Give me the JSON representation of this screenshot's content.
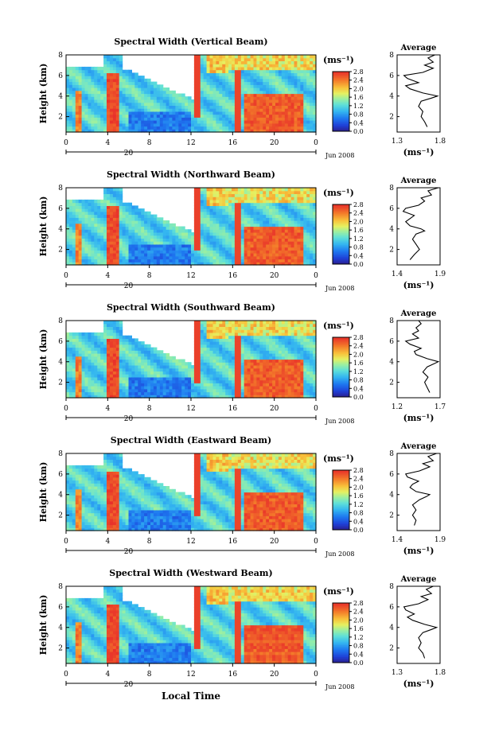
{
  "figure": {
    "xlabel": "Local Time",
    "xtick_labels": [
      "0",
      "4",
      "8",
      "12",
      "16",
      "20",
      "0"
    ],
    "date_tick": "20",
    "date_label": "Jun 2008",
    "ylabel": "Height (km)",
    "ytick_labels": [
      "2",
      "4",
      "6",
      "8"
    ],
    "unit_label": "(ms⁻¹)",
    "colorbar_ticks": [
      "0.0",
      "0.4",
      "0.8",
      "1.2",
      "1.6",
      "2.0",
      "2.4",
      "2.8"
    ],
    "profile_title": "Average",
    "profile_ytick_labels": [
      "2",
      "4",
      "6",
      "8"
    ]
  },
  "chart_data": [
    {
      "type": "heatmap",
      "title": "Spectral Width (Vertical Beam)",
      "x_range_hours": [
        0,
        24
      ],
      "ylim": [
        0.5,
        8
      ],
      "colorbar_range": [
        0,
        2.8
      ],
      "profile": {
        "title": "Average",
        "xlabel": "(ms⁻¹)",
        "xlim": [
          1.3,
          1.8
        ],
        "xtick_labels": [
          "1.3",
          "1.8"
        ],
        "heights": [
          1,
          1.5,
          2,
          2.5,
          3,
          3.5,
          3.8,
          4,
          4.3,
          4.7,
          5,
          5.3,
          5.7,
          6,
          6.3,
          6.7,
          7,
          7.3,
          7.7,
          8
        ],
        "values": [
          1.65,
          1.62,
          1.58,
          1.6,
          1.55,
          1.58,
          1.7,
          1.77,
          1.6,
          1.45,
          1.4,
          1.55,
          1.42,
          1.38,
          1.6,
          1.72,
          1.62,
          1.72,
          1.66,
          1.74
        ]
      }
    },
    {
      "type": "heatmap",
      "title": "Spectral Width (Northward Beam)",
      "x_range_hours": [
        0,
        24
      ],
      "ylim": [
        0.5,
        8
      ],
      "colorbar_range": [
        0,
        2.8
      ],
      "profile": {
        "title": "Average",
        "xlabel": "(ms⁻¹)",
        "xlim": [
          1.4,
          1.9
        ],
        "xtick_labels": [
          "1.4",
          "1.9"
        ],
        "heights": [
          1,
          1.5,
          2,
          2.5,
          3,
          3.5,
          3.8,
          4,
          4.3,
          4.7,
          5,
          5.3,
          5.7,
          6,
          6.3,
          6.7,
          7,
          7.3,
          7.7,
          8
        ],
        "values": [
          1.55,
          1.6,
          1.66,
          1.62,
          1.58,
          1.62,
          1.72,
          1.68,
          1.55,
          1.5,
          1.55,
          1.6,
          1.47,
          1.5,
          1.65,
          1.72,
          1.68,
          1.8,
          1.76,
          1.88
        ]
      }
    },
    {
      "type": "heatmap",
      "title": "Spectral Width (Southward Beam)",
      "x_range_hours": [
        0,
        24
      ],
      "ylim": [
        0.5,
        8
      ],
      "colorbar_range": [
        0,
        2.8
      ],
      "profile": {
        "title": "Average",
        "xlabel": "(ms⁻¹)",
        "xlim": [
          1.2,
          1.7
        ],
        "xtick_labels": [
          "1.2",
          "1.7"
        ],
        "heights": [
          1,
          1.5,
          2,
          2.5,
          3,
          3.5,
          3.8,
          4,
          4.3,
          4.7,
          5,
          5.3,
          5.7,
          6,
          6.3,
          6.7,
          7,
          7.3,
          7.7,
          8
        ],
        "values": [
          1.58,
          1.55,
          1.52,
          1.56,
          1.5,
          1.55,
          1.63,
          1.68,
          1.55,
          1.42,
          1.4,
          1.48,
          1.35,
          1.3,
          1.45,
          1.38,
          1.45,
          1.42,
          1.48,
          1.45
        ]
      }
    },
    {
      "type": "heatmap",
      "title": "Spectral Width (Eastward Beam)",
      "x_range_hours": [
        0,
        24
      ],
      "ylim": [
        0.5,
        8
      ],
      "colorbar_range": [
        0,
        2.8
      ],
      "profile": {
        "title": "Average",
        "xlabel": "(ms⁻¹)",
        "xlim": [
          1.4,
          1.9
        ],
        "xtick_labels": [
          "1.4",
          "1.9"
        ],
        "heights": [
          1,
          1.5,
          2,
          2.5,
          3,
          3.5,
          3.8,
          4,
          4.3,
          4.7,
          5,
          5.3,
          5.7,
          6,
          6.3,
          6.7,
          7,
          7.3,
          7.7,
          8
        ],
        "values": [
          1.6,
          1.62,
          1.58,
          1.62,
          1.58,
          1.66,
          1.74,
          1.78,
          1.62,
          1.55,
          1.58,
          1.65,
          1.52,
          1.5,
          1.66,
          1.78,
          1.7,
          1.82,
          1.76,
          1.86
        ]
      }
    },
    {
      "type": "heatmap",
      "title": "Spectral Width (Westward Beam)",
      "x_range_hours": [
        0,
        24
      ],
      "ylim": [
        0.5,
        8
      ],
      "colorbar_range": [
        0,
        2.8
      ],
      "profile": {
        "title": "Average",
        "xlabel": "(ms⁻¹)",
        "xlim": [
          1.3,
          1.8
        ],
        "xtick_labels": [
          "1.3",
          "1.8"
        ],
        "heights": [
          1,
          1.5,
          2,
          2.5,
          3,
          3.5,
          3.8,
          4,
          4.3,
          4.7,
          5,
          5.3,
          5.7,
          6,
          6.3,
          6.7,
          7,
          7.3,
          7.7,
          8
        ],
        "values": [
          1.62,
          1.6,
          1.55,
          1.58,
          1.55,
          1.6,
          1.7,
          1.76,
          1.62,
          1.48,
          1.42,
          1.5,
          1.4,
          1.38,
          1.55,
          1.66,
          1.58,
          1.7,
          1.64,
          1.72
        ]
      }
    }
  ]
}
